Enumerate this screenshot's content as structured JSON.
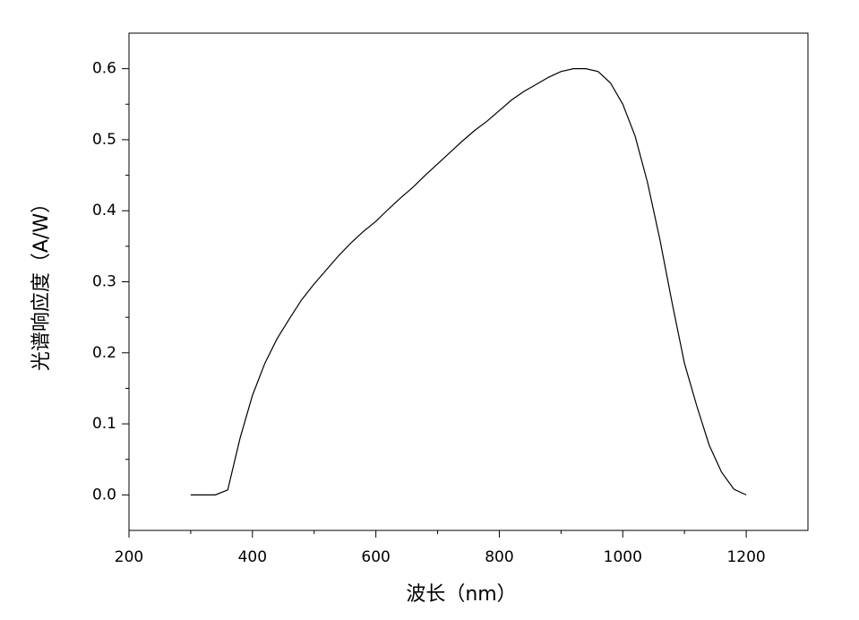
{
  "chart_data": {
    "type": "line",
    "x_label": "波长（nm）",
    "y_label": "光谱响应度（A/W）",
    "x": [
      300,
      320,
      340,
      360,
      380,
      400,
      420,
      440,
      460,
      480,
      500,
      520,
      540,
      560,
      580,
      600,
      620,
      640,
      660,
      680,
      700,
      720,
      740,
      760,
      780,
      800,
      820,
      840,
      860,
      880,
      900,
      920,
      940,
      960,
      980,
      1000,
      1020,
      1040,
      1060,
      1080,
      1100,
      1120,
      1140,
      1160,
      1180,
      1200
    ],
    "series": [
      {
        "color": "#000000",
        "values": [
          0,
          0,
          0,
          0.007,
          0.08,
          0.14,
          0.185,
          0.22,
          0.248,
          0.275,
          0.297,
          0.317,
          0.337,
          0.355,
          0.371,
          0.385,
          0.402,
          0.418,
          0.433,
          0.45,
          0.466,
          0.482,
          0.498,
          0.513,
          0.526,
          0.541,
          0.556,
          0.568,
          0.578,
          0.588,
          0.596,
          0.6,
          0.6,
          0.596,
          0.58,
          0.55,
          0.505,
          0.44,
          0.36,
          0.27,
          0.185,
          0.125,
          0.07,
          0.032,
          0.008,
          0
        ]
      }
    ],
    "xlim": [
      200,
      1300
    ],
    "xticks": [
      200,
      400,
      600,
      800,
      1000,
      1200
    ],
    "ylim": [
      -0.05,
      0.65
    ],
    "yticks": [
      {
        "value": 0,
        "label": "0.0"
      },
      0.1,
      0.2,
      0.3,
      0.4,
      0.5,
      0.6
    ],
    "grid": false
  }
}
